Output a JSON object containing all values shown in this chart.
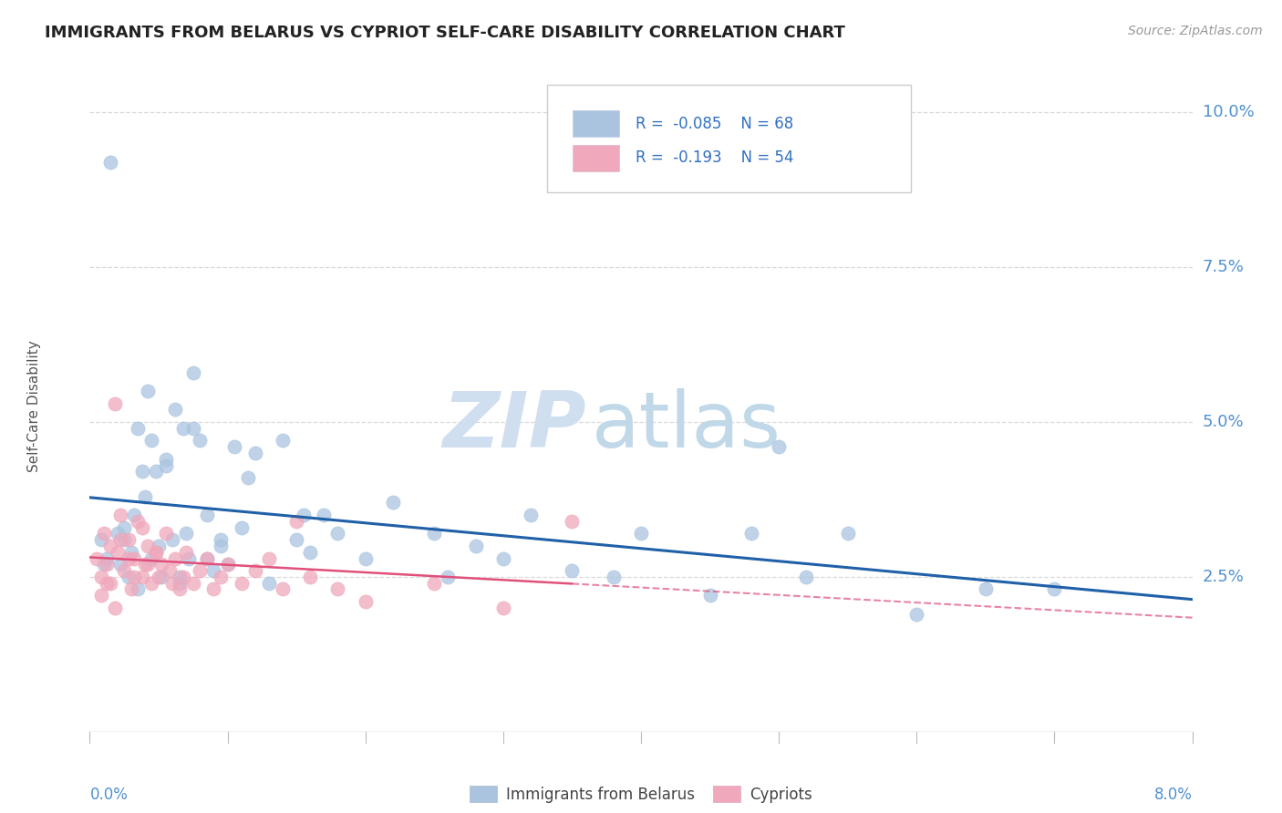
{
  "title": "IMMIGRANTS FROM BELARUS VS CYPRIOT SELF-CARE DISABILITY CORRELATION CHART",
  "source": "Source: ZipAtlas.com",
  "ylabel": "Self-Care Disability",
  "xmin": 0.0,
  "xmax": 8.0,
  "ymin": 0.0,
  "ymax": 10.5,
  "yticks": [
    2.5,
    5.0,
    7.5,
    10.0
  ],
  "ytick_labels": [
    "2.5%",
    "5.0%",
    "7.5%",
    "10.0%"
  ],
  "blue_R": -0.085,
  "blue_N": 68,
  "pink_R": -0.193,
  "pink_N": 54,
  "blue_label": "Immigrants from Belarus",
  "pink_label": "Cypriots",
  "blue_color": "#aac4e0",
  "pink_color": "#f0a8bc",
  "blue_line_color": "#2060a8",
  "pink_line_color": "#e0507a",
  "legend_text_color": "#3070c0",
  "title_color": "#222222",
  "source_color": "#999999",
  "axis_color": "#5090d0",
  "watermark_zip_color": "#d0dff0",
  "watermark_atlas_color": "#c0d8e8",
  "grid_color": "#d0d0d0",
  "legend_border_color": "#cccccc",
  "blue_x": [
    0.08,
    0.12,
    0.15,
    0.2,
    0.22,
    0.25,
    0.28,
    0.3,
    0.32,
    0.35,
    0.38,
    0.4,
    0.42,
    0.45,
    0.48,
    0.5,
    0.52,
    0.55,
    0.6,
    0.62,
    0.65,
    0.68,
    0.7,
    0.72,
    0.75,
    0.8,
    0.85,
    0.9,
    0.95,
    1.0,
    1.05,
    1.1,
    1.2,
    1.3,
    1.4,
    1.5,
    1.55,
    1.6,
    1.7,
    1.8,
    2.0,
    2.2,
    2.5,
    2.6,
    2.8,
    3.0,
    3.2,
    3.5,
    3.8,
    4.0,
    4.5,
    4.8,
    5.0,
    5.2,
    5.5,
    6.0,
    6.5,
    7.0,
    0.1,
    0.25,
    0.35,
    0.45,
    0.55,
    0.65,
    0.75,
    0.85,
    0.95,
    1.15
  ],
  "blue_y": [
    3.1,
    2.8,
    9.2,
    3.2,
    2.7,
    3.1,
    2.5,
    2.9,
    3.5,
    4.9,
    4.2,
    3.8,
    5.5,
    2.8,
    4.2,
    3.0,
    2.5,
    4.4,
    3.1,
    5.2,
    2.4,
    4.9,
    3.2,
    2.8,
    5.8,
    4.7,
    3.5,
    2.6,
    3.0,
    2.7,
    4.6,
    3.3,
    4.5,
    2.4,
    4.7,
    3.1,
    3.5,
    2.9,
    3.5,
    3.2,
    2.8,
    3.7,
    3.2,
    2.5,
    3.0,
    2.8,
    3.5,
    2.6,
    2.5,
    3.2,
    2.2,
    3.2,
    4.6,
    2.5,
    3.2,
    1.9,
    2.3,
    2.3,
    2.7,
    3.3,
    2.3,
    4.7,
    4.3,
    2.5,
    4.9,
    2.8,
    3.1,
    4.1
  ],
  "pink_x": [
    0.05,
    0.08,
    0.1,
    0.12,
    0.15,
    0.15,
    0.18,
    0.2,
    0.22,
    0.25,
    0.28,
    0.3,
    0.32,
    0.35,
    0.38,
    0.4,
    0.42,
    0.45,
    0.48,
    0.5,
    0.52,
    0.55,
    0.58,
    0.6,
    0.62,
    0.65,
    0.68,
    0.7,
    0.75,
    0.8,
    0.85,
    0.9,
    0.95,
    1.0,
    1.1,
    1.2,
    1.3,
    1.4,
    1.5,
    1.6,
    1.8,
    2.0,
    2.5,
    3.0,
    3.5,
    0.08,
    0.12,
    0.18,
    0.22,
    0.28,
    0.32,
    0.38,
    0.42,
    0.48
  ],
  "pink_y": [
    2.8,
    2.5,
    3.2,
    2.7,
    3.0,
    2.4,
    5.3,
    2.9,
    3.5,
    2.6,
    3.1,
    2.3,
    2.8,
    3.4,
    2.5,
    2.7,
    3.0,
    2.4,
    2.9,
    2.5,
    2.7,
    3.2,
    2.6,
    2.4,
    2.8,
    2.3,
    2.5,
    2.9,
    2.4,
    2.6,
    2.8,
    2.3,
    2.5,
    2.7,
    2.4,
    2.6,
    2.8,
    2.3,
    3.4,
    2.5,
    2.3,
    2.1,
    2.4,
    2.0,
    3.4,
    2.2,
    2.4,
    2.0,
    3.1,
    2.8,
    2.5,
    3.3,
    2.7,
    2.9
  ]
}
